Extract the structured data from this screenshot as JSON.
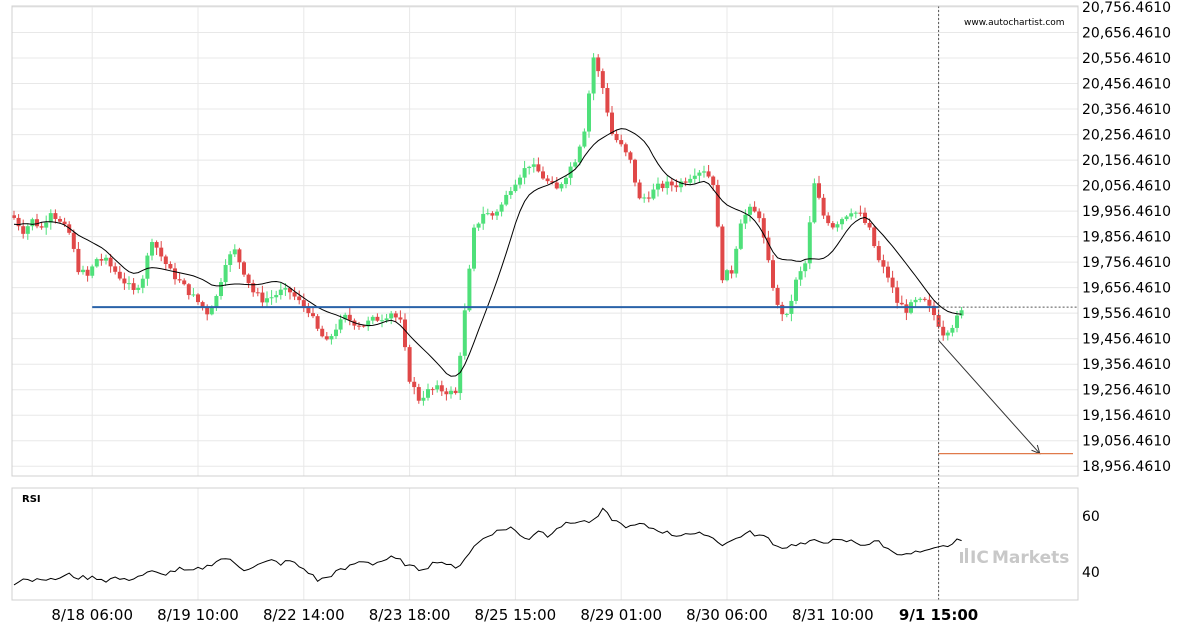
{
  "watermark_top": "www.autochartist.com",
  "watermark_brand": "Markets",
  "rsi_label": "RSI",
  "colors": {
    "bull": "#4fe07a",
    "bear": "#e04848",
    "level": "#2a62a8",
    "target": "#e07a4a",
    "ma": "#000000",
    "grid": "#e8e8e8",
    "vline": "#555555"
  },
  "chart_data": {
    "type": "candlestick",
    "price_axis": {
      "ylim": [
        18906.461,
        20756.461
      ],
      "ticks": [
        "20,756.4610",
        "20,656.4610",
        "20,556.4610",
        "20,456.4610",
        "20,356.4610",
        "20,256.4610",
        "20,156.4610",
        "20,056.4610",
        "19,956.4610",
        "19,856.4610",
        "19,756.4610",
        "19,656.4610",
        "19,556.4610",
        "19,456.4610",
        "19,356.4610",
        "19,256.4610",
        "19,156.4610",
        "19,056.4610",
        "18,956.4610"
      ]
    },
    "rsi_axis": {
      "ylim": [
        30,
        70
      ],
      "ticks": [
        "60",
        "40"
      ]
    },
    "x_labels": [
      {
        "label": "8/18 06:00",
        "bar": 17,
        "bold": false
      },
      {
        "label": "8/19 10:00",
        "bar": 40,
        "bold": false
      },
      {
        "label": "8/22 14:00",
        "bar": 63,
        "bold": false
      },
      {
        "label": "8/23 18:00",
        "bar": 86,
        "bold": false
      },
      {
        "label": "8/25 15:00",
        "bar": 109,
        "bold": false
      },
      {
        "label": "8/29 01:00",
        "bar": 132,
        "bold": false
      },
      {
        "label": "8/30 06:00",
        "bar": 155,
        "bold": false
      },
      {
        "label": "8/31 10:00",
        "bar": 178,
        "bold": false
      },
      {
        "label": "9/1 15:00",
        "bar": 201,
        "bold": true
      }
    ],
    "support_level": 19580,
    "projection": {
      "from_bar": 201,
      "from_price": 19450,
      "to_bar": 223,
      "to_price": 19006
    },
    "target_level": 19006,
    "current_bar": 201,
    "last_price": 19580,
    "waypoints": [
      [
        0,
        19930
      ],
      [
        2,
        19880
      ],
      [
        4,
        19920
      ],
      [
        6,
        19890
      ],
      [
        8,
        19960
      ],
      [
        10,
        19910
      ],
      [
        12,
        19870
      ],
      [
        14,
        19730
      ],
      [
        16,
        19700
      ],
      [
        18,
        19770
      ],
      [
        20,
        19760
      ],
      [
        22,
        19720
      ],
      [
        24,
        19680
      ],
      [
        26,
        19640
      ],
      [
        28,
        19700
      ],
      [
        30,
        19850
      ],
      [
        32,
        19780
      ],
      [
        34,
        19720
      ],
      [
        36,
        19680
      ],
      [
        38,
        19640
      ],
      [
        40,
        19600
      ],
      [
        42,
        19560
      ],
      [
        44,
        19620
      ],
      [
        46,
        19760
      ],
      [
        48,
        19800
      ],
      [
        50,
        19720
      ],
      [
        52,
        19640
      ],
      [
        54,
        19610
      ],
      [
        56,
        19620
      ],
      [
        58,
        19640
      ],
      [
        60,
        19640
      ],
      [
        62,
        19600
      ],
      [
        64,
        19570
      ],
      [
        66,
        19490
      ],
      [
        68,
        19440
      ],
      [
        70,
        19500
      ],
      [
        72,
        19540
      ],
      [
        74,
        19520
      ],
      [
        76,
        19510
      ],
      [
        78,
        19530
      ],
      [
        80,
        19540
      ],
      [
        82,
        19560
      ],
      [
        84,
        19520
      ],
      [
        86,
        19300
      ],
      [
        88,
        19220
      ],
      [
        90,
        19250
      ],
      [
        92,
        19260
      ],
      [
        94,
        19250
      ],
      [
        96,
        19240
      ],
      [
        98,
        19560
      ],
      [
        100,
        19880
      ],
      [
        102,
        19950
      ],
      [
        104,
        19940
      ],
      [
        106,
        19980
      ],
      [
        108,
        20050
      ],
      [
        110,
        20100
      ],
      [
        112,
        20140
      ],
      [
        114,
        20110
      ],
      [
        116,
        20070
      ],
      [
        118,
        20040
      ],
      [
        120,
        20100
      ],
      [
        122,
        20160
      ],
      [
        124,
        20280
      ],
      [
        126,
        20560
      ],
      [
        128,
        20440
      ],
      [
        130,
        20260
      ],
      [
        132,
        20210
      ],
      [
        134,
        20150
      ],
      [
        136,
        20000
      ],
      [
        138,
        20020
      ],
      [
        140,
        20050
      ],
      [
        142,
        20060
      ],
      [
        144,
        20060
      ],
      [
        146,
        20080
      ],
      [
        148,
        20110
      ],
      [
        150,
        20120
      ],
      [
        152,
        20070
      ],
      [
        154,
        19700
      ],
      [
        156,
        19720
      ],
      [
        158,
        19920
      ],
      [
        160,
        19960
      ],
      [
        162,
        19940
      ],
      [
        164,
        19750
      ],
      [
        166,
        19580
      ],
      [
        168,
        19540
      ],
      [
        170,
        19680
      ],
      [
        172,
        19750
      ],
      [
        174,
        20060
      ],
      [
        176,
        19940
      ],
      [
        178,
        19900
      ],
      [
        180,
        19930
      ],
      [
        182,
        19960
      ],
      [
        184,
        19940
      ],
      [
        186,
        19880
      ],
      [
        188,
        19760
      ],
      [
        190,
        19700
      ],
      [
        192,
        19600
      ],
      [
        194,
        19570
      ],
      [
        196,
        19600
      ],
      [
        198,
        19600
      ],
      [
        200,
        19550
      ],
      [
        202,
        19480
      ],
      [
        204,
        19510
      ],
      [
        206,
        19560
      ]
    ],
    "rsi_points": [
      [
        0,
        36
      ],
      [
        2,
        38
      ],
      [
        4,
        37
      ],
      [
        6,
        38
      ],
      [
        8,
        37
      ],
      [
        10,
        38
      ],
      [
        12,
        39
      ],
      [
        14,
        38
      ],
      [
        16,
        38
      ],
      [
        18,
        38
      ],
      [
        20,
        37
      ],
      [
        22,
        38
      ],
      [
        24,
        37
      ],
      [
        26,
        38
      ],
      [
        28,
        39
      ],
      [
        30,
        40
      ],
      [
        32,
        39
      ],
      [
        34,
        40
      ],
      [
        36,
        41
      ],
      [
        38,
        40
      ],
      [
        40,
        41
      ],
      [
        42,
        42
      ],
      [
        44,
        44
      ],
      [
        46,
        45
      ],
      [
        48,
        43
      ],
      [
        50,
        41
      ],
      [
        52,
        42
      ],
      [
        54,
        43
      ],
      [
        56,
        44
      ],
      [
        58,
        43
      ],
      [
        60,
        44
      ],
      [
        62,
        42
      ],
      [
        64,
        40
      ],
      [
        66,
        37
      ],
      [
        68,
        38
      ],
      [
        70,
        40
      ],
      [
        72,
        41
      ],
      [
        74,
        43
      ],
      [
        76,
        44
      ],
      [
        78,
        43
      ],
      [
        80,
        44
      ],
      [
        82,
        45
      ],
      [
        84,
        44
      ],
      [
        86,
        42
      ],
      [
        88,
        41
      ],
      [
        90,
        42
      ],
      [
        92,
        44
      ],
      [
        94,
        43
      ],
      [
        96,
        41
      ],
      [
        98,
        45
      ],
      [
        100,
        49
      ],
      [
        102,
        52
      ],
      [
        104,
        54
      ],
      [
        106,
        55
      ],
      [
        108,
        56
      ],
      [
        110,
        53
      ],
      [
        112,
        52
      ],
      [
        114,
        55
      ],
      [
        116,
        53
      ],
      [
        118,
        56
      ],
      [
        120,
        57
      ],
      [
        122,
        58
      ],
      [
        124,
        58
      ],
      [
        126,
        58
      ],
      [
        128,
        62
      ],
      [
        130,
        59
      ],
      [
        132,
        57
      ],
      [
        134,
        56
      ],
      [
        136,
        57
      ],
      [
        138,
        56
      ],
      [
        140,
        55
      ],
      [
        142,
        54
      ],
      [
        144,
        53
      ],
      [
        146,
        54
      ],
      [
        148,
        53
      ],
      [
        150,
        54
      ],
      [
        152,
        52
      ],
      [
        154,
        50
      ],
      [
        156,
        51
      ],
      [
        158,
        53
      ],
      [
        160,
        54
      ],
      [
        162,
        53
      ],
      [
        164,
        52
      ],
      [
        166,
        49
      ],
      [
        168,
        49
      ],
      [
        170,
        50
      ],
      [
        172,
        50
      ],
      [
        174,
        51
      ],
      [
        176,
        51
      ],
      [
        178,
        51
      ],
      [
        180,
        51
      ],
      [
        182,
        51
      ],
      [
        184,
        50
      ],
      [
        186,
        50
      ],
      [
        188,
        51
      ],
      [
        190,
        48
      ],
      [
        192,
        47
      ],
      [
        194,
        46
      ],
      [
        196,
        47
      ],
      [
        198,
        47
      ],
      [
        200,
        48
      ],
      [
        202,
        49
      ],
      [
        204,
        50
      ],
      [
        206,
        52
      ]
    ]
  }
}
